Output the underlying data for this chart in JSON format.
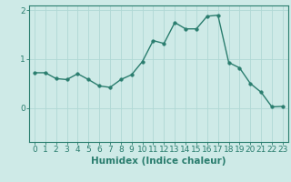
{
  "x": [
    0,
    1,
    2,
    3,
    4,
    5,
    6,
    7,
    8,
    9,
    10,
    11,
    12,
    13,
    14,
    15,
    16,
    17,
    18,
    19,
    20,
    21,
    22,
    23
  ],
  "y": [
    0.72,
    0.72,
    0.6,
    0.58,
    0.7,
    0.58,
    0.45,
    0.42,
    0.58,
    0.68,
    0.95,
    1.38,
    1.32,
    1.75,
    1.62,
    1.62,
    1.88,
    1.9,
    0.93,
    0.82,
    0.5,
    0.32,
    0.02,
    0.03
  ],
  "line_color": "#2a7d6e",
  "marker": "o",
  "marker_size": 2.5,
  "bg_color": "#ceeae7",
  "grid_color": "#b0d8d4",
  "axis_color": "#2a7d6e",
  "xlabel": "Humidex (Indice chaleur)",
  "xlabel_fontsize": 7.5,
  "ylim": [
    -0.7,
    2.1
  ],
  "xlim": [
    -0.5,
    23.5
  ],
  "yticks": [
    0,
    1,
    2
  ],
  "xticks": [
    0,
    1,
    2,
    3,
    4,
    5,
    6,
    7,
    8,
    9,
    10,
    11,
    12,
    13,
    14,
    15,
    16,
    17,
    18,
    19,
    20,
    21,
    22,
    23
  ],
  "tick_fontsize": 6.5
}
